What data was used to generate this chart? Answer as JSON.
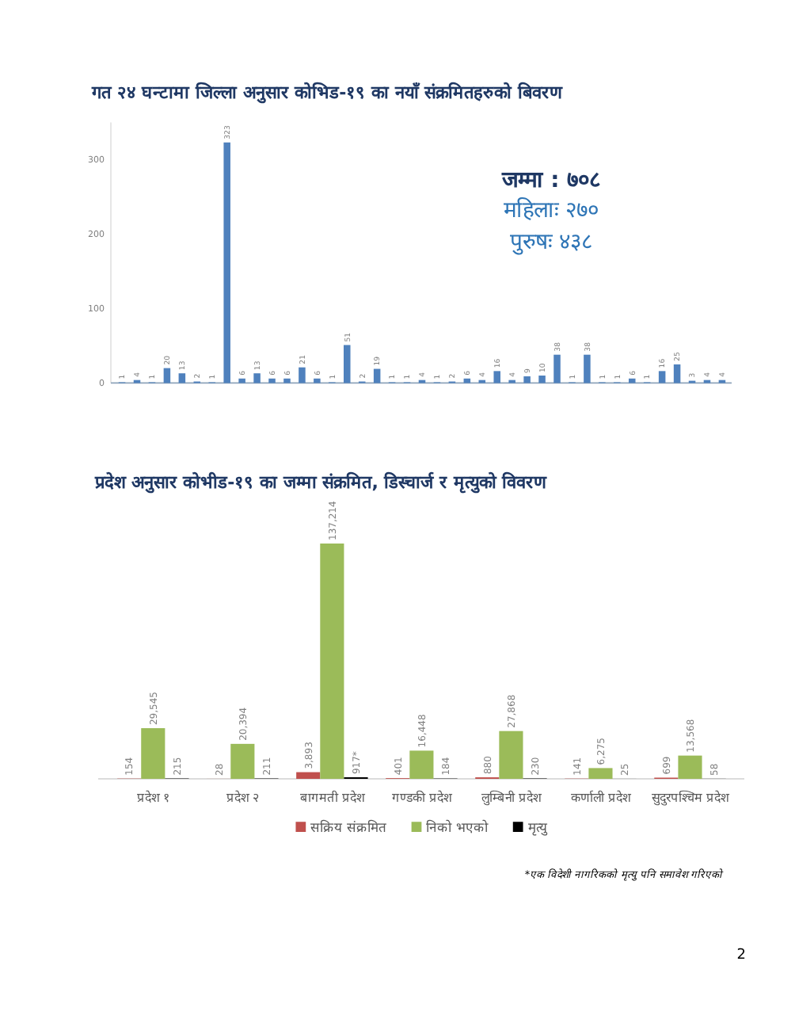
{
  "chart_data": [
    {
      "type": "bar",
      "title": "गत २४ घन्टामा जिल्ला अनुसार कोभिड-१९ का नयाँ संक्रमितहरुको बिवरण",
      "categories": [
        null,
        null,
        null,
        null,
        null,
        null,
        null,
        null,
        null,
        null,
        null,
        null,
        null,
        null,
        null,
        null,
        null,
        null,
        null,
        null,
        null,
        null,
        null,
        null,
        null,
        null,
        null,
        null,
        null,
        null,
        null,
        null,
        null,
        null,
        null,
        null,
        null,
        null,
        null,
        null,
        null
      ],
      "values": [
        1,
        4,
        1,
        20,
        13,
        2,
        1,
        323,
        6,
        13,
        6,
        6,
        21,
        6,
        1,
        51,
        2,
        19,
        1,
        1,
        4,
        1,
        2,
        6,
        4,
        16,
        4,
        9,
        10,
        38,
        1,
        38,
        1,
        1,
        6,
        1,
        16,
        25,
        3,
        4,
        4
      ],
      "color": "#4f81bd",
      "ylim": [
        0,
        350
      ],
      "yticks": [
        0,
        100,
        200,
        300
      ],
      "data_labels": true,
      "annotations": [
        "जम्मा : ७०८",
        "महिलाः २७०",
        "पुरुषः ४३८"
      ]
    },
    {
      "type": "bar",
      "title": "प्रदेश अनुसार कोभीड-१९ का जम्मा संक्रमित, डिस्चार्ज र मृत्युको विवरण",
      "categories": [
        "प्रदेश १",
        "प्रदेश २",
        "बागमती प्रदेश",
        "गण्डकी प्रदेश",
        "लुम्बिनी प्रदेश",
        "कर्णाली प्रदेश",
        "सुदुरपश्चिम प्रदेश"
      ],
      "series": [
        {
          "name": "सक्रिय संक्रमित",
          "color": "#c0504d",
          "values": [
            154,
            28,
            3893,
            401,
            880,
            141,
            699
          ],
          "value_labels": [
            "154",
            "28",
            "3,893",
            "401",
            "880",
            "141",
            "699"
          ]
        },
        {
          "name": "निको भएको",
          "color": "#9bbb59",
          "values": [
            29545,
            20394,
            137214,
            16448,
            27868,
            6275,
            13568
          ],
          "value_labels": [
            "29,545",
            "20,394",
            "137,214",
            "16,448",
            "27,868",
            "6,275",
            "13,568"
          ]
        },
        {
          "name": "मृत्यु",
          "color": "#000000",
          "values": [
            215,
            211,
            917,
            184,
            230,
            25,
            58
          ],
          "value_labels": [
            "215",
            "211",
            "917*",
            "184",
            "230",
            "25",
            "58"
          ]
        }
      ],
      "legend": "bottom",
      "annotations": [
        "*एक विदेशी नागरिकको मृत्यु पनि समावेश गरिएको",
        "2"
      ]
    }
  ]
}
